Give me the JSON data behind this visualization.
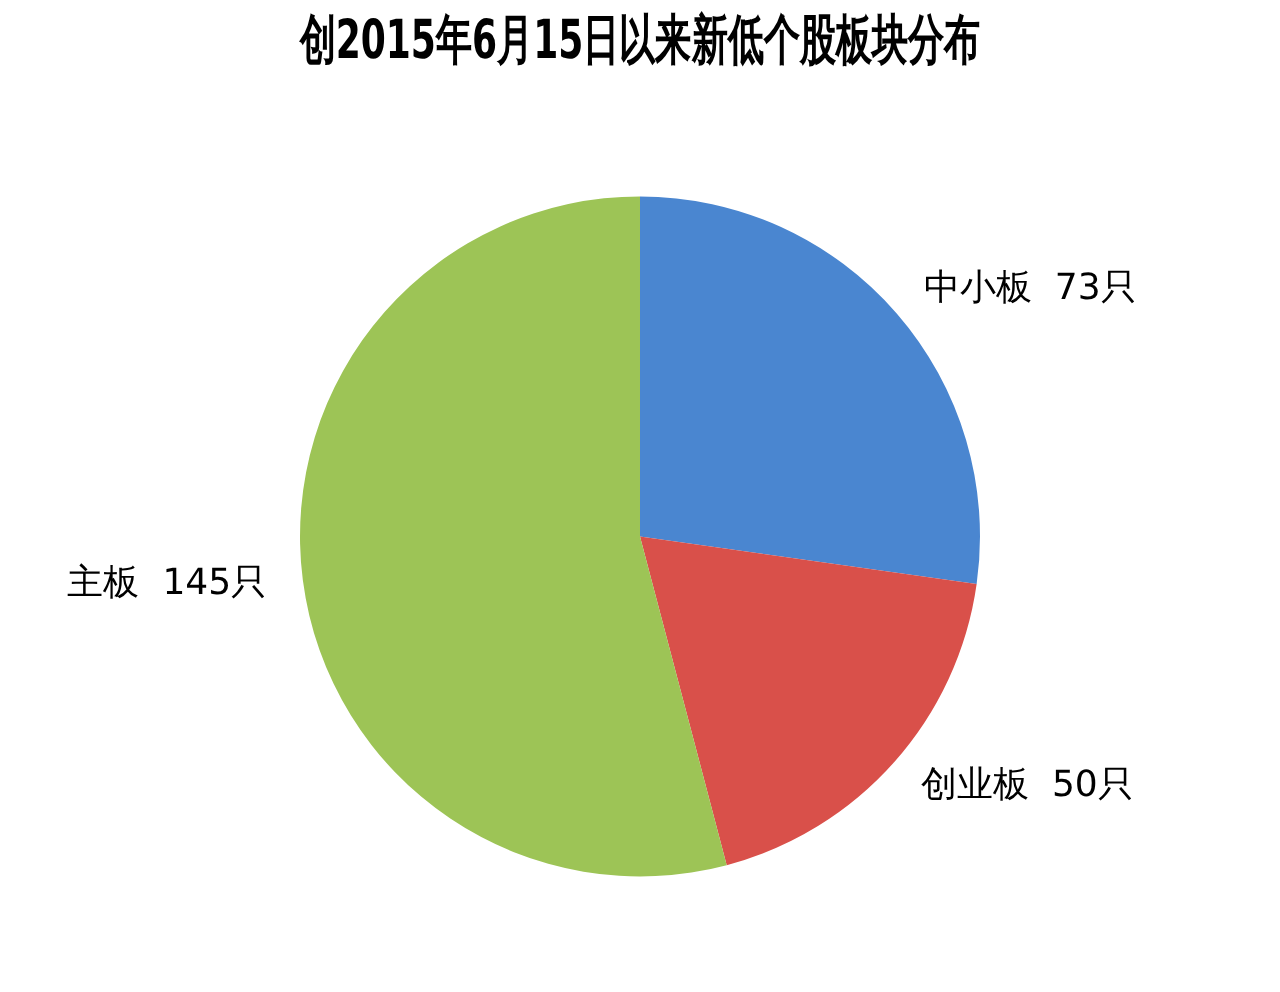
{
  "chart_data": {
    "type": "pie",
    "title": "创2015年6月15日以来新低个股板块分布",
    "categories": [
      "中小板",
      "创业板",
      "主板"
    ],
    "values": [
      73,
      50,
      145
    ],
    "colors": [
      "#4a86d0",
      "#d9504a",
      "#9dc456"
    ],
    "value_labels": [
      "73只",
      "50只",
      "145只"
    ],
    "legend": false
  }
}
